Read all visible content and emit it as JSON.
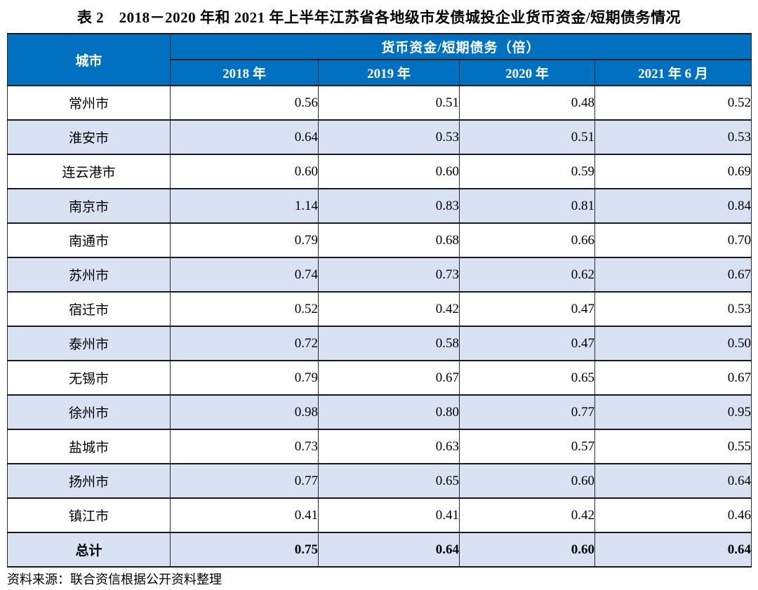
{
  "title": "表 2　2018－2020 年和 2021 年上半年江苏省各地级市发债城投企业货币资金/短期债务情况",
  "table": {
    "col1_header": "城市",
    "group_header": "货币资金/短期债务（倍）",
    "year_headers": [
      "2018 年",
      "2019 年",
      "2020 年",
      "2021 年 6 月"
    ],
    "rows": [
      {
        "city": "常州市",
        "values": [
          "0.56",
          "0.51",
          "0.48",
          "0.52"
        ],
        "total": false
      },
      {
        "city": "淮安市",
        "values": [
          "0.64",
          "0.53",
          "0.51",
          "0.53"
        ],
        "total": false
      },
      {
        "city": "连云港市",
        "values": [
          "0.60",
          "0.60",
          "0.59",
          "0.69"
        ],
        "total": false
      },
      {
        "city": "南京市",
        "values": [
          "1.14",
          "0.83",
          "0.81",
          "0.84"
        ],
        "total": false
      },
      {
        "city": "南通市",
        "values": [
          "0.79",
          "0.68",
          "0.66",
          "0.70"
        ],
        "total": false
      },
      {
        "city": "苏州市",
        "values": [
          "0.74",
          "0.73",
          "0.62",
          "0.67"
        ],
        "total": false
      },
      {
        "city": "宿迁市",
        "values": [
          "0.52",
          "0.42",
          "0.47",
          "0.53"
        ],
        "total": false
      },
      {
        "city": "泰州市",
        "values": [
          "0.72",
          "0.58",
          "0.47",
          "0.50"
        ],
        "total": false
      },
      {
        "city": "无锡市",
        "values": [
          "0.79",
          "0.67",
          "0.65",
          "0.67"
        ],
        "total": false
      },
      {
        "city": "徐州市",
        "values": [
          "0.98",
          "0.80",
          "0.77",
          "0.95"
        ],
        "total": false
      },
      {
        "city": "盐城市",
        "values": [
          "0.73",
          "0.63",
          "0.57",
          "0.55"
        ],
        "total": false
      },
      {
        "city": "扬州市",
        "values": [
          "0.77",
          "0.65",
          "0.60",
          "0.64"
        ],
        "total": false
      },
      {
        "city": "镇江市",
        "values": [
          "0.41",
          "0.41",
          "0.42",
          "0.46"
        ],
        "total": false
      },
      {
        "city": "总计",
        "values": [
          "0.75",
          "0.64",
          "0.60",
          "0.64"
        ],
        "total": true
      }
    ]
  },
  "footer": "资料来源：联合资信根据公开资料整理",
  "colors": {
    "header_bg": "#0070C0",
    "alt_row_bg": "#D9E2F3",
    "border": "#1a1a1a"
  }
}
